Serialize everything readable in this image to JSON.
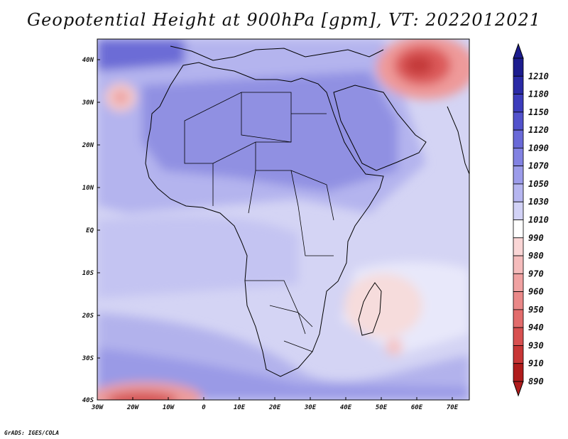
{
  "title": "Geopotential Height at 900hPa [gpm], VT: 2022012021",
  "credit": "GrADS: IGES/COLA",
  "map": {
    "lat_labels": [
      "40N",
      "30N",
      "20N",
      "10N",
      "EQ",
      "10S",
      "20S",
      "30S",
      "40S"
    ],
    "lon_labels": [
      "30W",
      "20W",
      "10W",
      "0",
      "10E",
      "20E",
      "30E",
      "40E",
      "50E",
      "60E",
      "70E"
    ],
    "background_color": "#d6d6f4"
  },
  "colorbar": {
    "levels": [
      "1210",
      "1180",
      "1150",
      "1120",
      "1090",
      "1070",
      "1050",
      "1030",
      "1010",
      "990",
      "980",
      "970",
      "960",
      "950",
      "940",
      "930",
      "910",
      "890"
    ],
    "colors": [
      "#1c1c8e",
      "#2a2aa6",
      "#3c3cbc",
      "#5252cc",
      "#6a6ad8",
      "#8282e2",
      "#9c9cea",
      "#b6b6f0",
      "#d2d2f6",
      "#ffffff",
      "#fad6d6",
      "#f5bcbc",
      "#f0a2a2",
      "#ea8888",
      "#e26c6c",
      "#d85050",
      "#c83636",
      "#b01c1c"
    ]
  }
}
